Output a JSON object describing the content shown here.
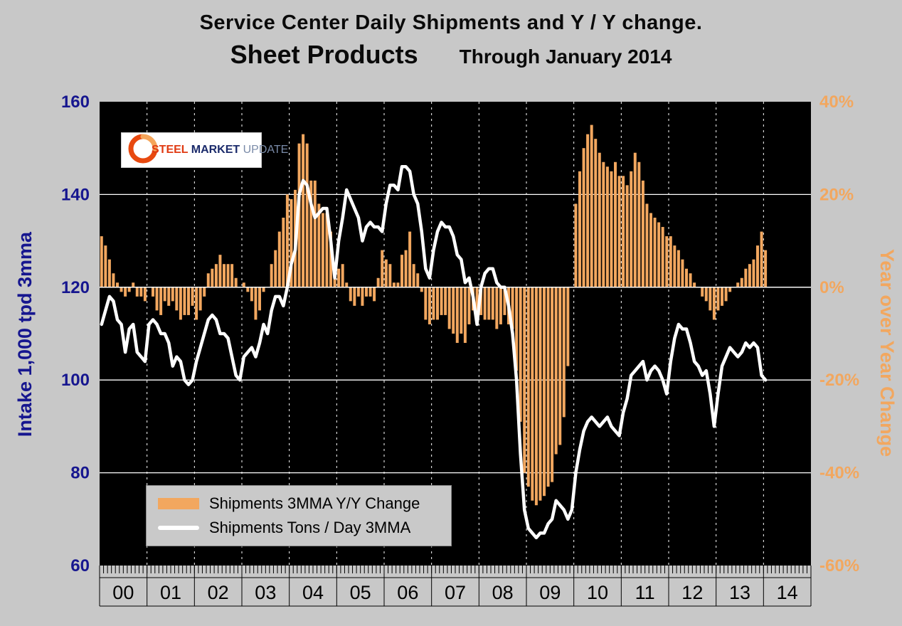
{
  "header": {
    "title": "Service Center Daily Shipments and Y / Y change.",
    "product": "Sheet Products",
    "through": "Through January 2014"
  },
  "logo": {
    "steel": "STEEL",
    "market": "MARKET",
    "update": "UPDATE"
  },
  "chart_data": {
    "type": "combo-bar-line",
    "x": {
      "start": "2000-01",
      "end": "2014-01",
      "interval": "monthly"
    },
    "x_axis": {
      "year_labels": [
        "00",
        "01",
        "02",
        "03",
        "04",
        "05",
        "06",
        "07",
        "08",
        "09",
        "10",
        "11",
        "12",
        "13",
        "14"
      ],
      "months_per_year": 12,
      "total_axis_months": 180
    },
    "left_axis": {
      "title": "Intake 1,000 tpd 3mma",
      "min": 60,
      "max": 160,
      "ticks": [
        160,
        140,
        120,
        100,
        80,
        60
      ]
    },
    "right_axis": {
      "title": "Year over Year Change",
      "min": -60,
      "max": 40,
      "ticks": [
        40,
        20,
        0,
        -20,
        -40,
        -60
      ],
      "tick_labels": [
        "40%",
        "20%",
        "0%",
        "-20%",
        "-40%",
        "-60%"
      ]
    },
    "series": [
      {
        "name": "Shipments 3MMA Y/Y Change",
        "type": "bar",
        "axis": "right",
        "unit": "%",
        "color": "#F2A75F",
        "values": [
          11,
          9,
          6,
          3,
          1,
          -1,
          -2,
          -1,
          1,
          -2,
          -2,
          -3,
          0,
          -2,
          -5,
          -6,
          -3,
          -4,
          -3,
          -5,
          -7,
          -6,
          -6,
          -4,
          -7,
          -5,
          -2,
          3,
          4,
          5,
          7,
          5,
          5,
          5,
          2,
          0,
          1,
          -1,
          -3,
          -7,
          -5,
          -1,
          0,
          5,
          8,
          12,
          15,
          20,
          19,
          21,
          31,
          33,
          31,
          23,
          23,
          18,
          16,
          16,
          12,
          2,
          4,
          5,
          1,
          -3,
          -4,
          -2,
          -4,
          -2,
          -2,
          -3,
          2,
          8,
          6,
          5,
          1,
          1,
          7,
          8,
          12,
          5,
          3,
          -1,
          -7,
          -8,
          -7,
          -7,
          -6,
          -6,
          -9,
          -10,
          -12,
          -10,
          -12,
          -8,
          -5,
          -8,
          -6,
          -7,
          -7,
          -7,
          -9,
          -8,
          -6,
          -8,
          -9,
          -18,
          -29,
          -40,
          -43,
          -46,
          -47,
          -46,
          -45,
          -43,
          -42,
          -36,
          -34,
          -28,
          -17,
          0,
          18,
          25,
          30,
          33,
          35,
          32,
          29,
          27,
          26,
          25,
          27,
          24,
          24,
          22,
          25,
          29,
          27,
          23,
          18,
          16,
          15,
          14,
          13,
          11,
          11,
          9,
          8,
          6,
          4,
          3,
          1,
          0,
          -2,
          -3,
          -5,
          -7,
          -5,
          -4,
          -3,
          -1,
          0,
          1,
          2,
          4,
          5,
          6,
          9,
          12,
          8
        ]
      },
      {
        "name": "Shipments Tons / Day 3MMA",
        "type": "line",
        "axis": "left",
        "unit": "1,000 tpd",
        "color": "#FFFFFF",
        "values": [
          112,
          115,
          118,
          117,
          113,
          112,
          106,
          111,
          112,
          106,
          105,
          104,
          112,
          113,
          112,
          110,
          110,
          108,
          103,
          105,
          104,
          100,
          99,
          100,
          104,
          107,
          110,
          113,
          114,
          113,
          110,
          110,
          109,
          105,
          101,
          100,
          105,
          106,
          107,
          105,
          108,
          112,
          110,
          115,
          118,
          118,
          116,
          120,
          125,
          128,
          140,
          143,
          142,
          138,
          135,
          136,
          137,
          137,
          130,
          122,
          130,
          135,
          141,
          139,
          137,
          135,
          130,
          133,
          134,
          133,
          133,
          132,
          138,
          142,
          142,
          141,
          146,
          146,
          145,
          140,
          138,
          132,
          124,
          122,
          128,
          132,
          134,
          133,
          133,
          131,
          127,
          126,
          121,
          122,
          118,
          112,
          120,
          123,
          124,
          124,
          121,
          120,
          120,
          116,
          110,
          100,
          84,
          72,
          68,
          67,
          66,
          67,
          67,
          69,
          70,
          74,
          73,
          72,
          70,
          72,
          80,
          85,
          89,
          91,
          92,
          91,
          90,
          91,
          92,
          90,
          89,
          88,
          93,
          96,
          101,
          102,
          103,
          104,
          100,
          102,
          103,
          102,
          100,
          97,
          104,
          109,
          112,
          111,
          111,
          108,
          104,
          103,
          101,
          102,
          97,
          90,
          97,
          103,
          105,
          107,
          106,
          105,
          106,
          108,
          107,
          108,
          107,
          101,
          100
        ]
      }
    ],
    "colors": {
      "page_bg": "#C8C8C8",
      "plot_bg": "#000000",
      "bar": "#F2A75F",
      "line": "#FFFFFF",
      "left_axis": "#16168F",
      "right_axis": "#F2A75F",
      "grid": "#FFFFFF",
      "tick": "#000000"
    },
    "legend_position": "bottom-left-inside"
  }
}
